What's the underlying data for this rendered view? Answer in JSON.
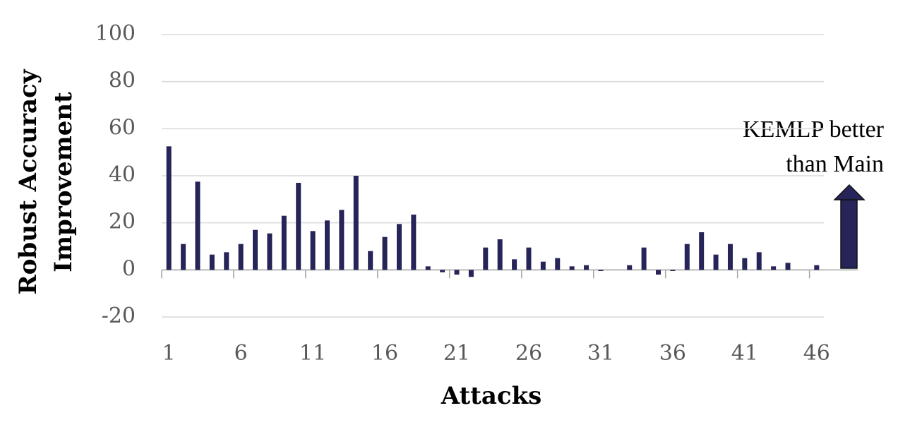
{
  "chart_data": {
    "type": "bar",
    "ylabel": [
      "Robust Accuracy",
      "Improvement"
    ],
    "xlabel": "Attacks",
    "annotation": [
      "KEMLP better",
      "than Main"
    ],
    "categories": [
      1,
      null,
      null,
      null,
      null,
      6,
      null,
      null,
      null,
      null,
      11,
      null,
      null,
      null,
      null,
      16,
      null,
      null,
      null,
      null,
      21,
      null,
      null,
      null,
      null,
      26,
      null,
      null,
      null,
      null,
      31,
      null,
      null,
      null,
      null,
      36,
      null,
      null,
      null,
      null,
      41,
      null,
      null,
      null,
      null,
      46
    ],
    "values": [
      52.5,
      11,
      37.5,
      6.5,
      7.5,
      11,
      17,
      15.5,
      23,
      37,
      16.5,
      21,
      25.5,
      40,
      8,
      14,
      19.5,
      23.5,
      1.5,
      -1,
      -2,
      -3,
      9.5,
      13,
      4.5,
      9.5,
      3.5,
      5,
      1.5,
      2,
      -0.5,
      0,
      2,
      9.5,
      -2,
      -0.5,
      11,
      16,
      6.5,
      11,
      5,
      7.5,
      1.5,
      3,
      0,
      2
    ],
    "color": "#262459",
    "ylim": [
      -20,
      100
    ],
    "yticks": [
      -20,
      0,
      20,
      40,
      60,
      80,
      100
    ],
    "grid": true
  }
}
